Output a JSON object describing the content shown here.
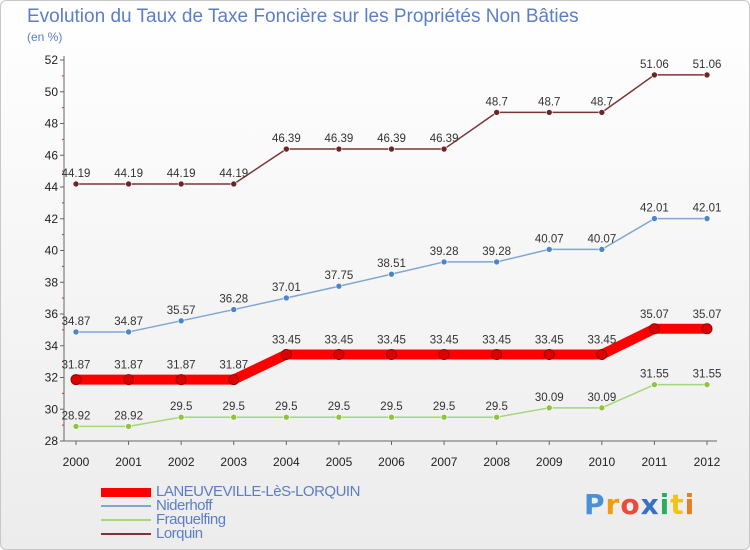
{
  "title": "Evolution du Taux de Taxe Foncière sur les Propriétés Non Bâties",
  "subtitle": "(en %)",
  "logo": {
    "text": "Proxiti",
    "letters": [
      {
        "ch": "P",
        "color": "#4a90d9"
      },
      {
        "ch": "r",
        "color": "#f39c12"
      },
      {
        "ch": "o",
        "color": "#e74c3c"
      },
      {
        "ch": "x",
        "color": "#3a6fc4"
      },
      {
        "ch": "i",
        "color": "#27ae60"
      },
      {
        "ch": "t",
        "color": "#f1c40f"
      },
      {
        "ch": "i",
        "color": "#e67e22"
      }
    ]
  },
  "chart_data": {
    "type": "line",
    "title": "Evolution du Taux de Taxe Foncière sur les Propriétés Non Bâties",
    "ylabel": "(en %)",
    "xlabel": "",
    "categories": [
      "2000",
      "2001",
      "2002",
      "2003",
      "2004",
      "2005",
      "2006",
      "2007",
      "2008",
      "2009",
      "2010",
      "2011",
      "2012"
    ],
    "ylim": [
      28,
      52
    ],
    "yticks": [
      28,
      30,
      32,
      34,
      36,
      38,
      40,
      42,
      44,
      46,
      48,
      50,
      52
    ],
    "grid": false,
    "legend_position": "bottom-left",
    "series": [
      {
        "name": "LANEUVEVILLE-LèS-LORQUIN",
        "color": "#ff0000",
        "point_color": "#dd0000",
        "highlight": true,
        "values": [
          31.87,
          31.87,
          31.87,
          31.87,
          33.45,
          33.45,
          33.45,
          33.45,
          33.45,
          33.45,
          33.45,
          35.07,
          35.07
        ],
        "labels": [
          "31.87",
          "31.87",
          "31.87",
          "31.87",
          "33.45",
          "33.45",
          "33.45",
          "33.45",
          "33.45",
          "33.45",
          "33.45",
          "35.07",
          "35.07"
        ]
      },
      {
        "name": "Niderhoff",
        "color": "#7fa7d3",
        "point_color": "#4a86c8",
        "highlight": false,
        "values": [
          34.87,
          34.87,
          35.57,
          36.28,
          37.01,
          37.75,
          38.51,
          39.28,
          39.28,
          40.07,
          40.07,
          42.01,
          42.01
        ],
        "labels": [
          "34.87",
          "34.87",
          "35.57",
          "36.28",
          "37.01",
          "37.75",
          "38.51",
          "39.28",
          "39.28",
          "40.07",
          "40.07",
          "42.01",
          "42.01"
        ]
      },
      {
        "name": "Fraquelfing",
        "color": "#a4d67a",
        "point_color": "#8cc63f",
        "highlight": false,
        "values": [
          28.92,
          28.92,
          29.5,
          29.5,
          29.5,
          29.5,
          29.5,
          29.5,
          29.5,
          30.09,
          30.09,
          31.55,
          31.55
        ],
        "labels": [
          "28.92",
          "28.92",
          "29.5",
          "29.5",
          "29.5",
          "29.5",
          "29.5",
          "29.5",
          "29.5",
          "30.09",
          "30.09",
          "31.55",
          "31.55"
        ]
      },
      {
        "name": "Lorquin",
        "color": "#7b3535",
        "point_color": "#6b2626",
        "highlight": false,
        "values": [
          44.19,
          44.19,
          44.19,
          44.19,
          46.39,
          46.39,
          46.39,
          46.39,
          48.7,
          48.7,
          48.7,
          51.06,
          51.06
        ],
        "labels": [
          "44.19",
          "44.19",
          "44.19",
          "44.19",
          "46.39",
          "46.39",
          "46.39",
          "46.39",
          "48.7",
          "48.7",
          "48.7",
          "51.06",
          "51.06"
        ]
      }
    ]
  }
}
